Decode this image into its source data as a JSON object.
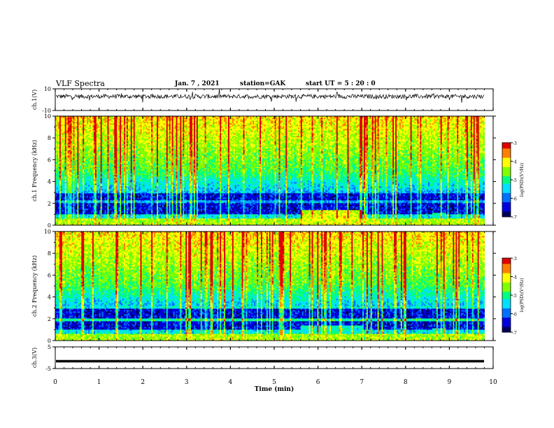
{
  "header": {
    "title": "VLF Spectra",
    "date": "Jan. 7 , 2021",
    "station": "station=GAK",
    "start": "start UT = 5 : 20 : 0"
  },
  "chart_data": [
    {
      "type": "line",
      "title": "VLF Spectra",
      "ylabel": "ch.1(V)",
      "ylim": [
        -10,
        10
      ],
      "yticks": [
        "10",
        "-10"
      ],
      "xlim": [
        0,
        10
      ],
      "note": "noisy waveform trace around ~3 V"
    },
    {
      "type": "heatmap",
      "ylabel": "ch.1 Frequency (kHz)",
      "ylim": [
        0,
        10
      ],
      "yticks": [
        "0",
        "2",
        "4",
        "6",
        "8",
        "10"
      ],
      "xlim": [
        0,
        10
      ],
      "data_extent_x": [
        0,
        9.8
      ],
      "colorbar": {
        "label": "log(PSD)(V²/Hz)",
        "range": [
          -7,
          -3
        ],
        "ticks": [
          "-3",
          "-4",
          "-5",
          "-6",
          "-7"
        ]
      }
    },
    {
      "type": "heatmap",
      "ylabel": "ch.2 Frequency (kHz)",
      "ylim": [
        0,
        10
      ],
      "yticks": [
        "0",
        "2",
        "4",
        "6",
        "8",
        "10"
      ],
      "xlim": [
        0,
        10
      ],
      "data_extent_x": [
        0,
        9.8
      ],
      "colorbar": {
        "label": "log(PSD)(V²/Hz)",
        "range": [
          -7,
          -3
        ],
        "ticks": [
          "-3",
          "-4",
          "-5",
          "-6",
          "-7"
        ]
      }
    },
    {
      "type": "line",
      "ylabel": "ch.3(V)",
      "ylim": [
        -5,
        5
      ],
      "yticks": [
        "5",
        "-5"
      ],
      "xlim": [
        0,
        10
      ],
      "value": -1.6,
      "xlabel": "Time (min)",
      "xticks": [
        "0",
        "1",
        "2",
        "3",
        "4",
        "5",
        "6",
        "7",
        "8",
        "9",
        "10"
      ]
    }
  ],
  "colors": {
    "scale": [
      "#00005a",
      "#0000e0",
      "#0070ff",
      "#00e0ff",
      "#00ff80",
      "#80ff00",
      "#ffff00",
      "#ff8000",
      "#e00000"
    ]
  }
}
